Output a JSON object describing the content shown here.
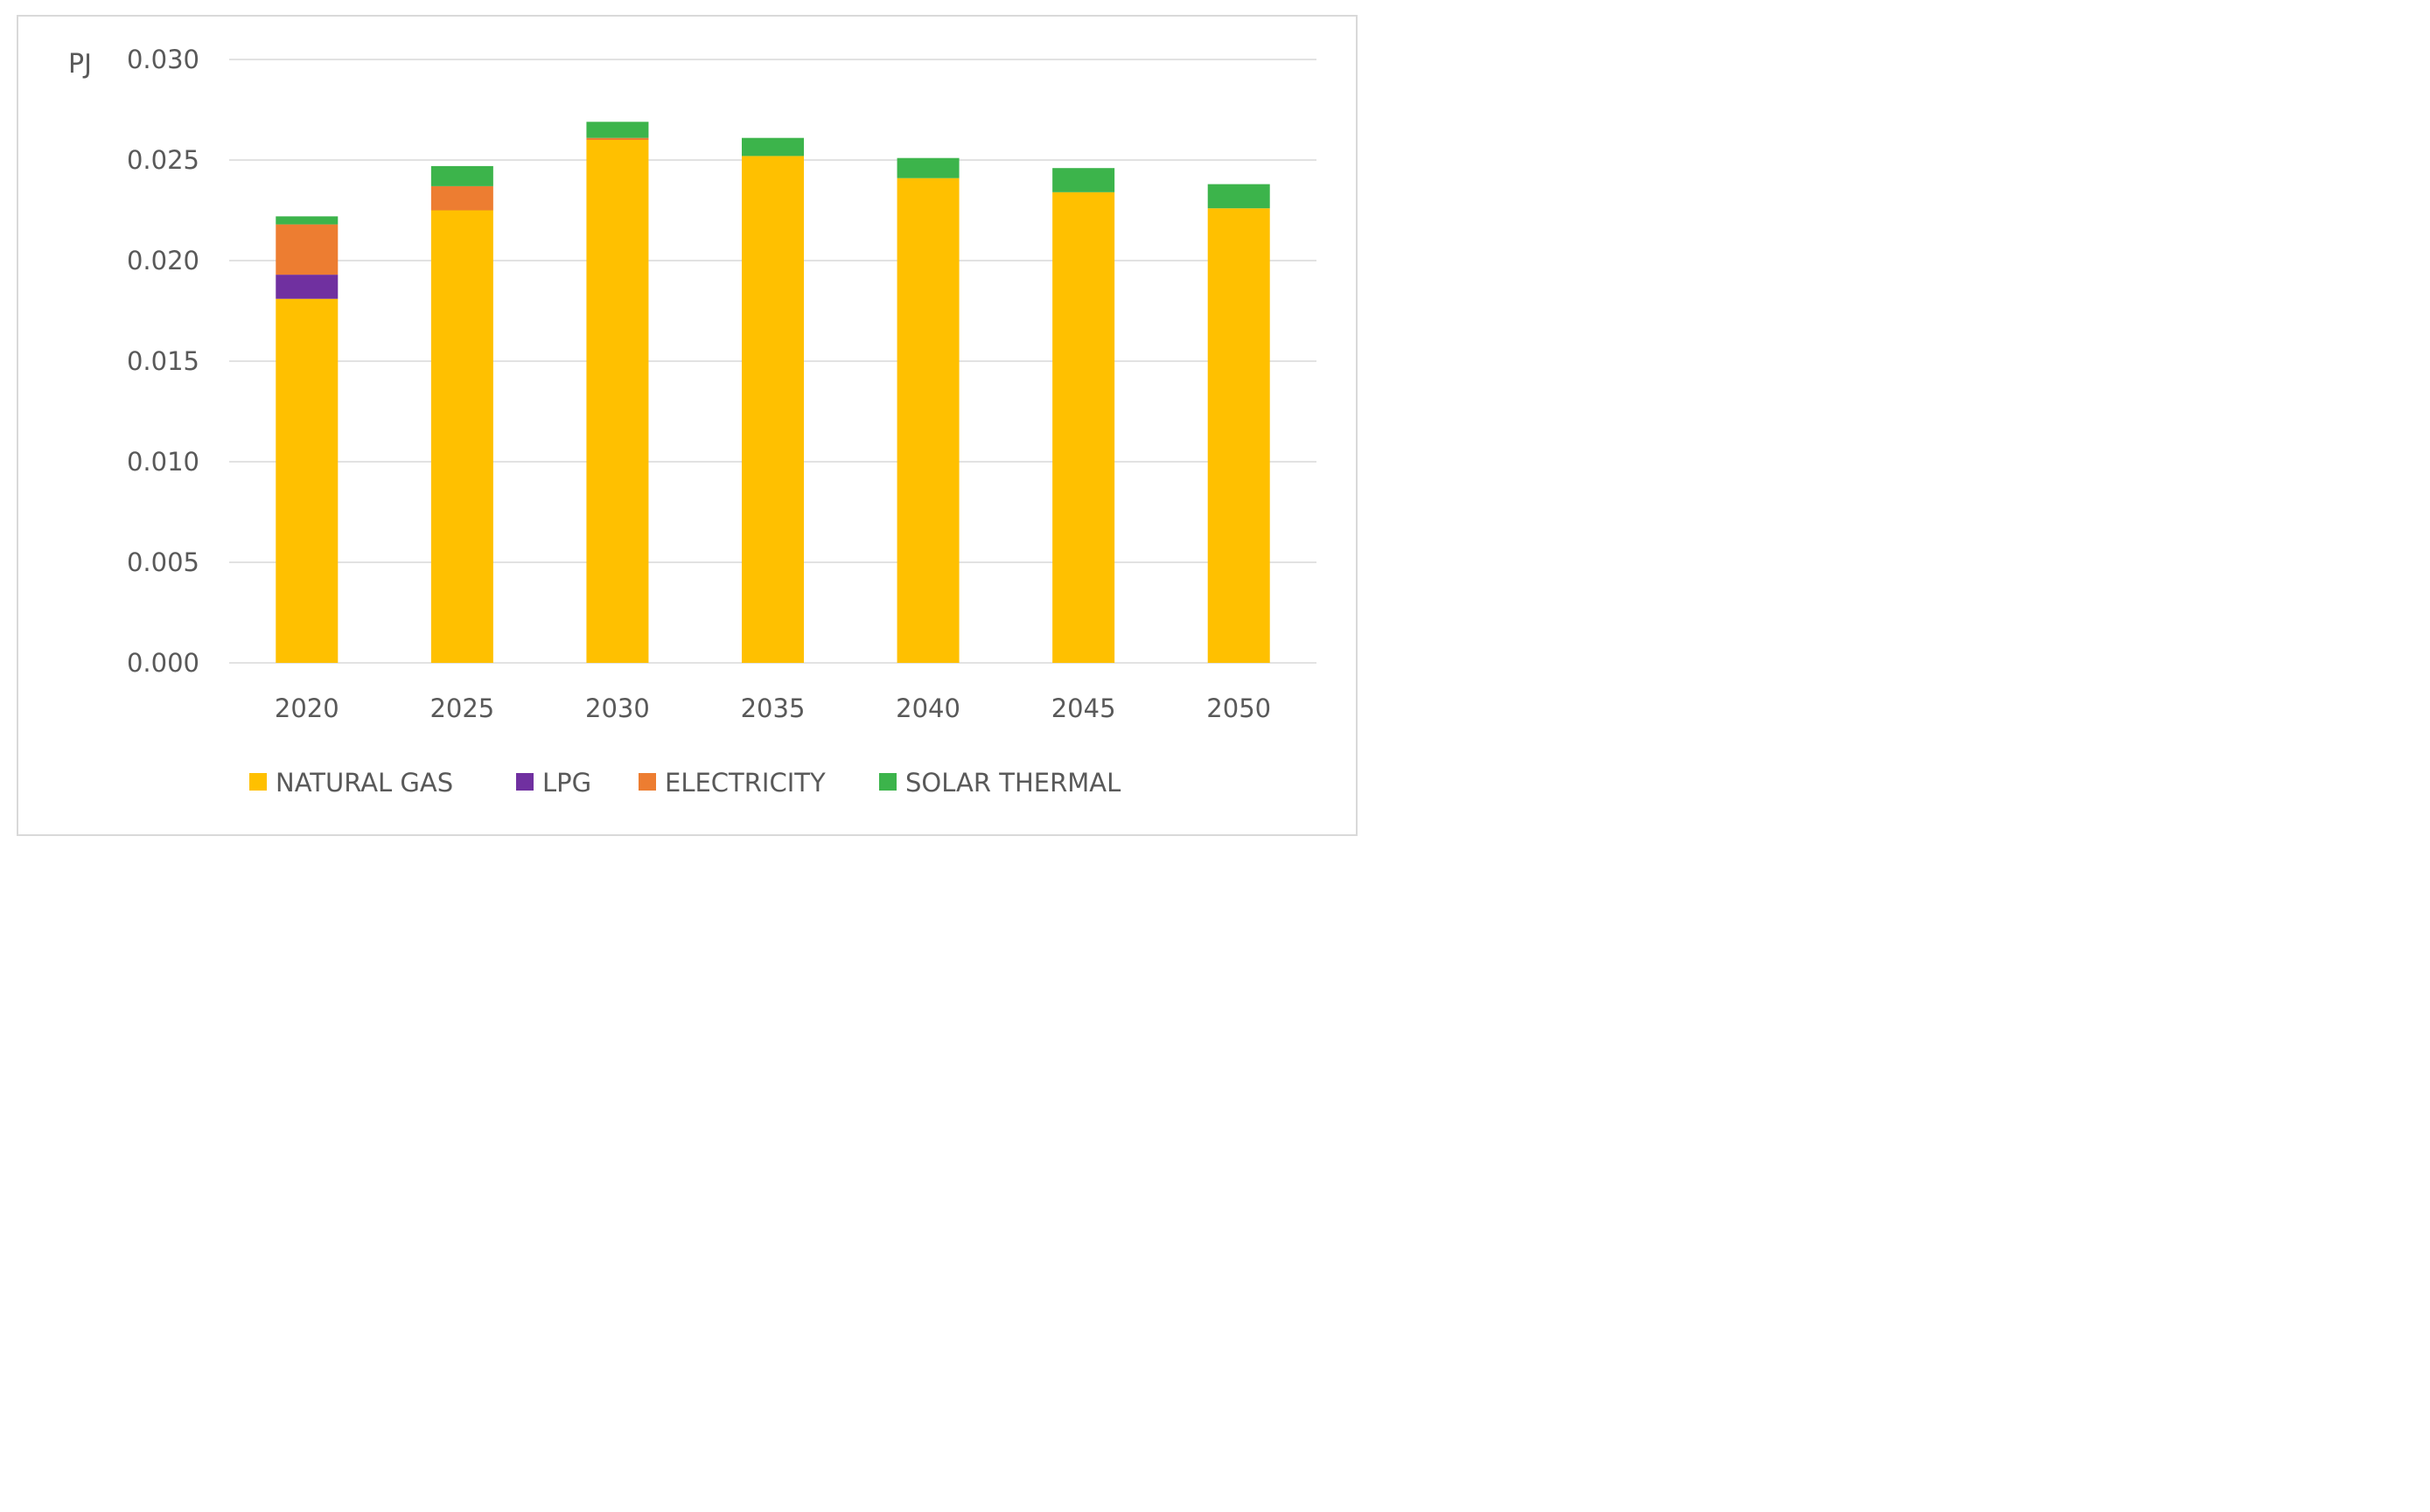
{
  "chart_data": {
    "type": "bar",
    "stacked": true,
    "title": "",
    "xlabel": "",
    "ylabel": "PJ",
    "ylim": [
      0,
      0.03
    ],
    "yticks": [
      "0.000",
      "0.005",
      "0.010",
      "0.015",
      "0.020",
      "0.025",
      "0.030"
    ],
    "grid": true,
    "legend_position": "bottom",
    "categories": [
      "2020",
      "2025",
      "2030",
      "2035",
      "2040",
      "2045",
      "2050"
    ],
    "series": [
      {
        "name": "NATURAL GAS",
        "color": "#ffc000",
        "values": [
          0.0181,
          0.0225,
          0.026,
          0.0252,
          0.0241,
          0.0234,
          0.0226
        ]
      },
      {
        "name": "LPG",
        "color": "#7030a0",
        "values": [
          0.0012,
          0.0,
          0.0,
          0.0,
          0.0,
          0.0,
          0.0
        ]
      },
      {
        "name": "ELECTRICITY",
        "color": "#ed7d31",
        "values": [
          0.0025,
          0.0012,
          0.0001,
          0.0,
          0.0,
          0.0,
          0.0
        ]
      },
      {
        "name": "SOLAR THERMAL",
        "color": "#3cb44b",
        "values": [
          0.0004,
          0.001,
          0.0008,
          0.0009,
          0.001,
          0.0012,
          0.0012
        ]
      }
    ]
  }
}
